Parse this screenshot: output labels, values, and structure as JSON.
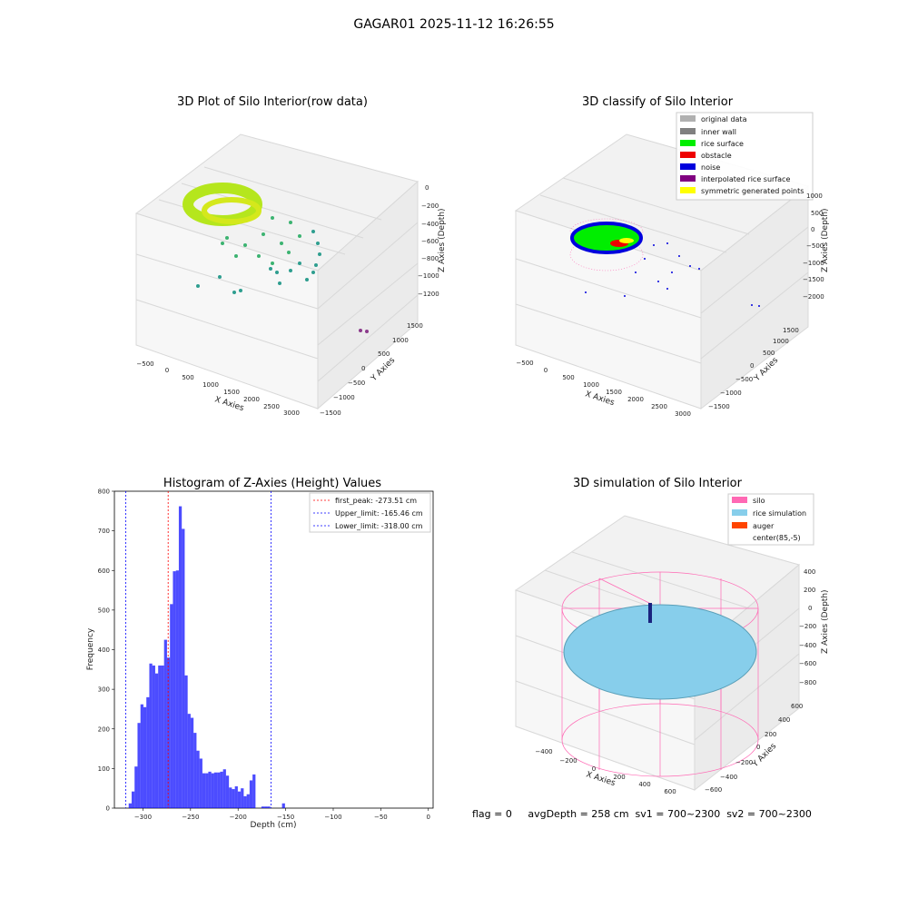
{
  "figure_title": "GAGAR01 2025-11-12 16:26:55",
  "footer": "flag = 0     avgDepth = 258 cm  sv1 = 700~2300  sv2 = 700~2300",
  "panels": {
    "raw": {
      "title": "3D Plot of Silo Interior(row data)",
      "xlabel": "X Axies",
      "ylabel": "Y Axies",
      "zlabel": "Z Axies (Depth)",
      "xticks": [
        "−500",
        "0",
        "500",
        "1000",
        "1500",
        "2000",
        "2500",
        "3000"
      ],
      "yticks": [
        "−1500",
        "−1000",
        "−500",
        "0",
        "500",
        "1000",
        "1500"
      ],
      "zticks": [
        "0",
        "−200",
        "−400",
        "−600",
        "−800",
        "−1000",
        "−1200"
      ]
    },
    "classify": {
      "title": "3D classify of Silo Interior",
      "xlabel": "X Axies",
      "ylabel": "Y Axies",
      "zlabel": "Z Axies (Depth)",
      "xticks": [
        "−500",
        "0",
        "500",
        "1000",
        "1500",
        "2000",
        "2500",
        "3000"
      ],
      "yticks": [
        "−1500",
        "−1000",
        "−500",
        "0",
        "500",
        "1000",
        "1500"
      ],
      "zticks": [
        "1000",
        "500",
        "0",
        "−500",
        "−1000",
        "−1500",
        "−2000"
      ],
      "legend": [
        {
          "label": "original data",
          "color": "#b0b0b0"
        },
        {
          "label": "inner wall",
          "color": "#808080"
        },
        {
          "label": "rice surface",
          "color": "#00ee00"
        },
        {
          "label": "obstacle",
          "color": "#ee0000"
        },
        {
          "label": "noise",
          "color": "#0000dd"
        },
        {
          "label": "interpolated rice surface",
          "color": "#800080"
        },
        {
          "label": "symmetric generated points",
          "color": "#ffff00"
        }
      ]
    },
    "simulation": {
      "title": "3D simulation of Silo Interior",
      "xlabel": "X Axies",
      "ylabel": "Y Axies",
      "zlabel": "Z Axies (Depth)",
      "xticks": [
        "−400",
        "−200",
        "0",
        "200",
        "400",
        "600"
      ],
      "yticks": [
        "−600",
        "−400",
        "−200",
        "0",
        "200",
        "400",
        "600"
      ],
      "zticks": [
        "400",
        "200",
        "0",
        "−200",
        "−400",
        "−600",
        "−800"
      ],
      "legend": [
        {
          "label": "silo",
          "color": "#ff69b4"
        },
        {
          "label": "rice simulation",
          "color": "#87ceeb"
        },
        {
          "label": "auger",
          "color": "#ff4500"
        },
        {
          "label": "center(85,-5)",
          "color": ""
        }
      ]
    }
  },
  "chart_data": {
    "type": "bar",
    "title": "Histogram of Z-Axies (Height) Values",
    "xlabel": "Depth (cm)",
    "ylabel": "Frequency",
    "xlim": [
      -330,
      5
    ],
    "ylim": [
      0,
      800
    ],
    "xticks": [
      -300,
      -250,
      -200,
      -150,
      -100,
      -50,
      0
    ],
    "yticks": [
      0,
      100,
      200,
      300,
      400,
      500,
      600,
      700,
      800
    ],
    "bin_width": 3.1,
    "bin_start": -315.0,
    "counts": [
      12,
      42,
      105,
      215,
      262,
      255,
      280,
      365,
      360,
      340,
      360,
      360,
      425,
      380,
      515,
      598,
      600,
      762,
      705,
      335,
      238,
      228,
      190,
      145,
      125,
      88,
      88,
      92,
      88,
      90,
      90,
      92,
      98,
      82,
      52,
      48,
      55,
      42,
      50,
      30,
      35,
      70,
      85,
      0,
      0,
      4,
      4,
      4,
      0,
      0,
      0,
      0,
      12
    ],
    "color": "#0000ff",
    "series_label": "",
    "vlines": [
      {
        "x": -273.51,
        "label": "first_peak: -273.51 cm",
        "color": "#ff0000"
      },
      {
        "x": -165.46,
        "label": "Upper_limit: -165.46 cm",
        "color": "#0000ff"
      },
      {
        "x": -318.0,
        "label": "Lower_limit: -318.00 cm",
        "color": "#0000ff"
      }
    ],
    "legend_position": "top-right"
  }
}
